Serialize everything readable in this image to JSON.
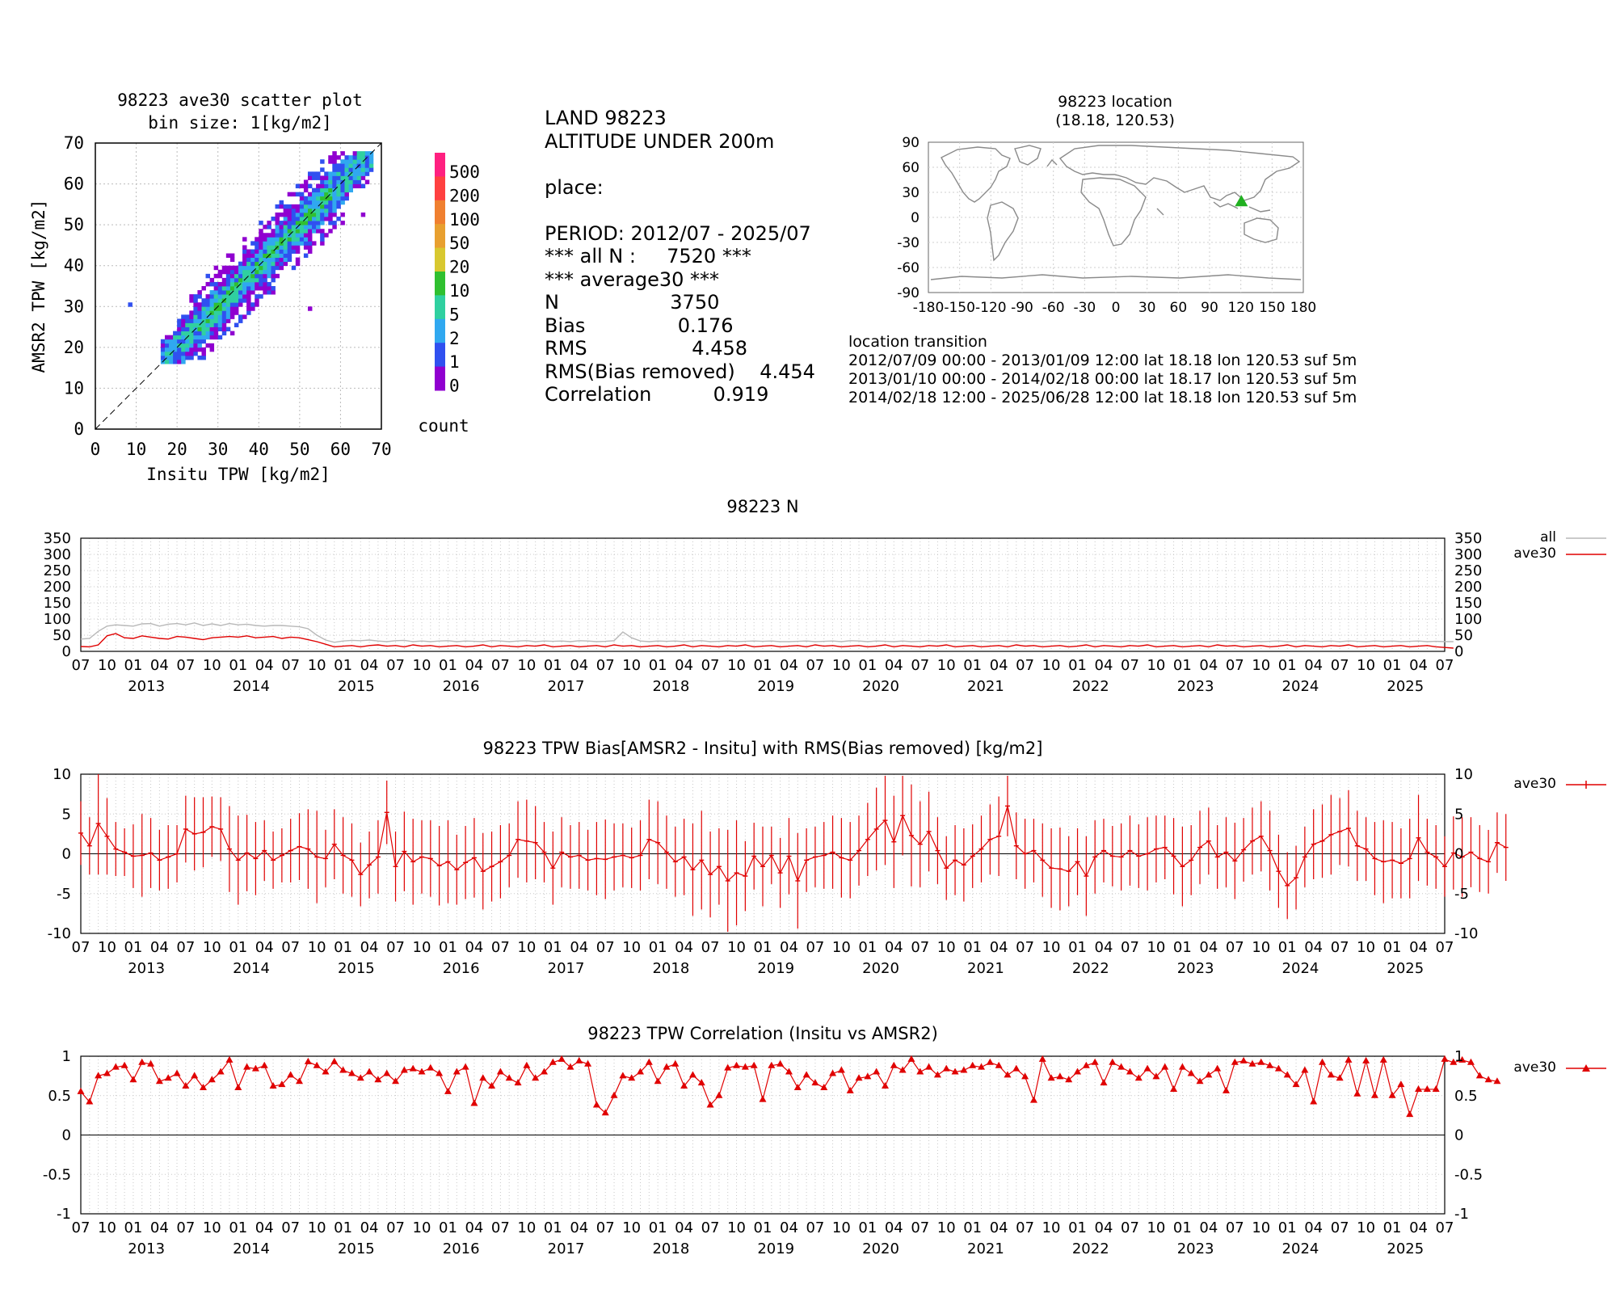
{
  "scatter": {
    "title": "98223 ave30 scatter plot",
    "subtitle": "bin size: 1[kg/m2]",
    "xlabel": "Insitu TPW [kg/m2]",
    "ylabel": "AMSR2 TPW [kg/m2]",
    "colorbar_label": "count",
    "colorbar_ticks": [
      "500",
      "200",
      "100",
      "50",
      "20",
      "10",
      "5",
      "2",
      "1",
      "0"
    ],
    "colorbar_colors": [
      "#ff2080",
      "#ff4040",
      "#f08030",
      "#e8a030",
      "#d8c830",
      "#30c030",
      "#30d0a0",
      "#30a8f0",
      "#3050f0",
      "#9000d0"
    ]
  },
  "info": {
    "line1": "LAND 98223",
    "line2": "ALTITUDE UNDER 200m",
    "place": "place:",
    "period": "PERIOD: 2012/07 - 2025/07",
    "alln": "*** all N :     7520 ***",
    "avg": "*** average30 ***",
    "n": "N                  3750",
    "bias": "Bias               0.176",
    "rms": "RMS                 4.458",
    "rmsbr": "RMS(Bias removed)    4.454",
    "corr": "Correlation          0.919"
  },
  "location": {
    "title": "98223 location",
    "coords": "(18.18, 120.53)",
    "lat": 18.18,
    "lon": 120.53,
    "marker_color": "#20b020",
    "transition_title": "location transition",
    "transitions": [
      "2012/07/09 00:00 - 2013/01/09 12:00 lat 18.18 lon 120.53 suf 5m",
      "2013/01/10 00:00 - 2014/02/18 00:00 lat 18.17 lon 120.53 suf 5m",
      "2014/02/18 12:00 - 2025/06/28 12:00 lat 18.18 lon 120.53 suf 5m"
    ]
  },
  "timeseries": {
    "month_labels": [
      "07",
      "10",
      "01",
      "04"
    ],
    "year_labels": [
      "2013",
      "2014",
      "2015",
      "2016",
      "2017",
      "2018",
      "2019",
      "2020",
      "2021",
      "2022",
      "2023",
      "2024",
      "2025"
    ]
  },
  "chart_data": [
    {
      "type": "heatmap",
      "title": "98223 ave30 scatter plot",
      "subtitle": "bin size: 1[kg/m2]",
      "xlabel": "Insitu TPW [kg/m2]",
      "ylabel": "AMSR2 TPW [kg/m2]",
      "xlim": [
        0,
        70
      ],
      "ylim": [
        0,
        70
      ],
      "xticks": [
        0,
        10,
        20,
        30,
        40,
        50,
        60,
        70
      ],
      "yticks": [
        0,
        10,
        20,
        30,
        40,
        50,
        60,
        70
      ],
      "colorbar_levels": [
        "0",
        "1",
        "2",
        "5",
        "10",
        "20",
        "50",
        "100",
        "200",
        "500"
      ],
      "density_ridge": {
        "x": [
          18,
          25,
          35,
          45,
          55,
          62
        ],
        "y": [
          19,
          25,
          35,
          45,
          55,
          62
        ]
      },
      "outliers": [
        {
          "x": 8,
          "y": 30
        },
        {
          "x": 52,
          "y": 29
        },
        {
          "x": 65,
          "y": 52
        }
      ],
      "reference_line": "y = x"
    },
    {
      "type": "line",
      "title": "98223 N",
      "ylim": [
        0,
        350
      ],
      "yticks": [
        0,
        50,
        100,
        150,
        200,
        250,
        300,
        350
      ],
      "x_start": "2012/07",
      "x_end": "2025/07",
      "series": [
        {
          "name": "all",
          "color": "#b8b8b8",
          "values": [
            38,
            40,
            62,
            78,
            82,
            80,
            78,
            85,
            86,
            78,
            84,
            86,
            82,
            88,
            80,
            85,
            80,
            86,
            82,
            84,
            80,
            78,
            80,
            80,
            78,
            76,
            70,
            50,
            35,
            28,
            32,
            34,
            33,
            35,
            32,
            30,
            33,
            34,
            30,
            32,
            30,
            32,
            33,
            30,
            32,
            31,
            30,
            33,
            32,
            30,
            32,
            33,
            30,
            32,
            31,
            32,
            30,
            33,
            32,
            30,
            31,
            33,
            60,
            42,
            32,
            30,
            32,
            31,
            32,
            30,
            32,
            33,
            30,
            31,
            32,
            30,
            31,
            32,
            31,
            32,
            30,
            30,
            31,
            32,
            30,
            31,
            32,
            30,
            33,
            32,
            30,
            32,
            31,
            30,
            32,
            30,
            31,
            32,
            30,
            31,
            32,
            31,
            30,
            32,
            30,
            31,
            32,
            30,
            32,
            31,
            30,
            32,
            31,
            30,
            32,
            30,
            33,
            31,
            30,
            31,
            32,
            30,
            31,
            32,
            30,
            32,
            30,
            31,
            32,
            30,
            31,
            32,
            30,
            33,
            31,
            30,
            31,
            32,
            30,
            31,
            32,
            30,
            31,
            32,
            30,
            32,
            31,
            30,
            32,
            31,
            32,
            30,
            31,
            32,
            30,
            31,
            30,
            30
          ]
        },
        {
          "name": "ave30",
          "color": "#e00000",
          "values": [
            15,
            14,
            20,
            48,
            55,
            42,
            40,
            48,
            44,
            40,
            38,
            46,
            44,
            40,
            36,
            42,
            44,
            46,
            44,
            48,
            42,
            44,
            46,
            40,
            44,
            42,
            36,
            30,
            22,
            14,
            16,
            18,
            14,
            18,
            20,
            16,
            18,
            14,
            20,
            16,
            18,
            14,
            16,
            18,
            14,
            16,
            20,
            14,
            18,
            16,
            14,
            18,
            16,
            20,
            14,
            16,
            18,
            14,
            16,
            18,
            14,
            20,
            16,
            18,
            14,
            16,
            18,
            14,
            16,
            20,
            14,
            18,
            16,
            14,
            18,
            16,
            20,
            14,
            16,
            18,
            14,
            16,
            18,
            14,
            20,
            16,
            18,
            14,
            16,
            18,
            14,
            16,
            20,
            14,
            18,
            16,
            14,
            18,
            16,
            20,
            14,
            16,
            18,
            14,
            16,
            18,
            14,
            20,
            16,
            18,
            14,
            16,
            18,
            14,
            16,
            20,
            14,
            18,
            16,
            14,
            18,
            16,
            20,
            14,
            16,
            18,
            14,
            16,
            18,
            14,
            20,
            16,
            18,
            14,
            16,
            18,
            14,
            16,
            20,
            14,
            18,
            16,
            14,
            18,
            16,
            20,
            14,
            16,
            18,
            14,
            16,
            18,
            14,
            16,
            18,
            14,
            12,
            10
          ]
        }
      ]
    },
    {
      "type": "line",
      "title": "98223 TPW Bias[AMSR2 - Insitu] with RMS(Bias removed) [kg/m2]",
      "ylim": [
        -10,
        10
      ],
      "yticks": [
        -10,
        -5,
        0,
        5,
        10
      ],
      "x_start": "2012/07",
      "x_end": "2025/07",
      "series": [
        {
          "name": "ave30",
          "color": "#e00000",
          "values": [
            2.6,
            1.0,
            3.8,
            2.2,
            0.6,
            0.2,
            -0.3,
            -0.2,
            0.1,
            -0.8,
            -0.4,
            0.0,
            3.1,
            2.5,
            2.7,
            3.4,
            3.1,
            0.6,
            -0.8,
            0.1,
            -0.6,
            0.4,
            -0.8,
            -0.2,
            0.4,
            0.9,
            0.6,
            -0.4,
            -0.6,
            1.2,
            -0.2,
            -0.8,
            -2.6,
            -1.4,
            -0.4,
            5.2,
            -1.6,
            0.3,
            -1.0,
            -0.4,
            -0.6,
            -1.5,
            -1.0,
            -2.0,
            -1.1,
            -0.5,
            -2.2,
            -1.6,
            -1.0,
            -0.2,
            1.8,
            1.6,
            1.4,
            0.2,
            -1.8,
            0.2,
            -0.4,
            -0.2,
            -0.8,
            -0.6,
            -0.7,
            -0.4,
            -0.2,
            -0.5,
            -0.2,
            1.8,
            1.4,
            0.2,
            -1.0,
            -0.4,
            -2.0,
            -0.8,
            -2.6,
            -1.6,
            -3.4,
            -2.4,
            -2.8,
            -0.3,
            -1.6,
            -0.2,
            -2.4,
            -0.3,
            -3.4,
            -0.8,
            -0.4,
            -0.2,
            0.2,
            -0.5,
            -0.8,
            0.4,
            1.8,
            3.1,
            4.2,
            1.5,
            4.8,
            2.3,
            1.2,
            2.8,
            0.4,
            -1.8,
            -0.8,
            -1.4,
            -0.3,
            0.6,
            1.8,
            2.2,
            6.0,
            1.0,
            0.0,
            0.4,
            -0.8,
            -1.8,
            -1.9,
            -2.2,
            -1.0,
            -2.8,
            -0.4,
            0.4,
            -0.3,
            -0.4,
            0.4,
            -0.3,
            0.0,
            0.6,
            0.8,
            -0.3,
            -1.6,
            -0.8,
            0.8,
            1.6,
            -0.4,
            0.2,
            -0.9,
            0.5,
            1.6,
            2.2,
            0.4,
            -2.2,
            -4.0,
            -3.0,
            -0.4,
            1.2,
            1.6,
            2.4,
            2.8,
            3.2,
            1.0,
            0.6,
            -0.6,
            -1.0,
            -0.8,
            -1.2,
            -0.6,
            2.0,
            0.2,
            -0.4,
            -1.6,
            0.1,
            -0.4,
            0.2,
            -0.6,
            -1.0,
            1.4,
            0.8
          ]
        },
        {
          "name": "rms_bias_removed",
          "color": "#e00000",
          "values": [
            4.0,
            3.6,
            6.4,
            4.8,
            3.4,
            3.0,
            4.0,
            5.2,
            4.4,
            3.8,
            4.0,
            3.6,
            4.2,
            4.6,
            4.4,
            3.8,
            4.0,
            5.4,
            5.6,
            4.8,
            4.6,
            3.8,
            3.6,
            3.4,
            4.0,
            4.2,
            5.0,
            5.8,
            3.6,
            4.4,
            4.8,
            4.6,
            4.0,
            4.2,
            4.6,
            4.0,
            4.4,
            5.0,
            5.4,
            4.6,
            4.8,
            5.0,
            5.2,
            4.4,
            4.6,
            5.0,
            4.8,
            4.4,
            4.6,
            4.0,
            4.8,
            5.2,
            4.6,
            3.8,
            4.6,
            4.4,
            4.0,
            4.2,
            3.8,
            4.6,
            5.0,
            4.2,
            4.0,
            3.8,
            4.4,
            5.0,
            5.2,
            4.6,
            4.4,
            4.8,
            5.8,
            6.2,
            5.4,
            4.8,
            6.4,
            6.6,
            4.4,
            4.2,
            5.0,
            3.6,
            4.4,
            4.8,
            6.0,
            4.0,
            3.8,
            4.2,
            4.6,
            5.0,
            4.8,
            4.4,
            4.6,
            5.2,
            5.6,
            5.8,
            5.0,
            6.4,
            5.4,
            5.0,
            4.2,
            4.0,
            4.4,
            4.6,
            4.0,
            4.2,
            4.4,
            5.0,
            3.8,
            4.2,
            4.4,
            4.0,
            4.6,
            5.0,
            5.2,
            4.4,
            4.2,
            5.0,
            4.6,
            4.0,
            3.8,
            4.2,
            4.4,
            4.0,
            4.6,
            4.2,
            4.0,
            4.8,
            5.0,
            4.4,
            4.6,
            4.2,
            4.0,
            4.4,
            4.8,
            4.0,
            4.2,
            4.4,
            5.0,
            4.6,
            4.2,
            4.0,
            3.8,
            4.4,
            4.6,
            5.0,
            4.2,
            4.8,
            4.4,
            4.0,
            4.6,
            5.2,
            4.8,
            4.4,
            5.0,
            5.4,
            4.2,
            4.0,
            3.8,
            4.6,
            5.0,
            4.4,
            4.2,
            4.0,
            3.8,
            4.2
          ]
        }
      ]
    },
    {
      "type": "line",
      "title": "98223 TPW Correlation (Insitu vs AMSR2)",
      "ylim": [
        -1,
        1
      ],
      "yticks": [
        -1,
        -0.5,
        0,
        0.5,
        1
      ],
      "x_start": "2012/07",
      "x_end": "2025/07",
      "series": [
        {
          "name": "ave30",
          "color": "#e00000",
          "values": [
            0.55,
            0.42,
            0.75,
            0.78,
            0.86,
            0.88,
            0.7,
            0.92,
            0.9,
            0.68,
            0.72,
            0.78,
            0.62,
            0.75,
            0.6,
            0.7,
            0.8,
            0.95,
            0.6,
            0.86,
            0.84,
            0.88,
            0.62,
            0.64,
            0.76,
            0.68,
            0.93,
            0.88,
            0.8,
            0.93,
            0.82,
            0.78,
            0.72,
            0.8,
            0.7,
            0.78,
            0.68,
            0.82,
            0.84,
            0.8,
            0.85,
            0.78,
            0.55,
            0.8,
            0.86,
            0.4,
            0.72,
            0.62,
            0.8,
            0.72,
            0.66,
            0.88,
            0.72,
            0.8,
            0.92,
            0.96,
            0.86,
            0.94,
            0.9,
            0.38,
            0.28,
            0.5,
            0.75,
            0.72,
            0.8,
            0.92,
            0.68,
            0.86,
            0.9,
            0.62,
            0.76,
            0.66,
            0.38,
            0.5,
            0.85,
            0.88,
            0.86,
            0.88,
            0.45,
            0.88,
            0.9,
            0.8,
            0.6,
            0.76,
            0.66,
            0.6,
            0.78,
            0.82,
            0.56,
            0.72,
            0.74,
            0.8,
            0.62,
            0.88,
            0.82,
            0.96,
            0.8,
            0.86,
            0.76,
            0.84,
            0.8,
            0.82,
            0.88,
            0.86,
            0.92,
            0.88,
            0.76,
            0.84,
            0.74,
            0.44,
            0.96,
            0.72,
            0.74,
            0.7,
            0.8,
            0.88,
            0.92,
            0.66,
            0.92,
            0.86,
            0.8,
            0.72,
            0.84,
            0.74,
            0.86,
            0.58,
            0.86,
            0.78,
            0.68,
            0.76,
            0.84,
            0.56,
            0.92,
            0.94,
            0.9,
            0.92,
            0.88,
            0.84,
            0.76,
            0.64,
            0.82,
            0.42,
            0.92,
            0.76,
            0.72,
            0.95,
            0.52,
            0.94,
            0.5,
            0.95,
            0.5,
            0.64,
            0.26,
            0.58,
            0.58,
            0.58,
            0.96,
            0.92,
            0.95,
            0.92,
            0.75,
            0.7,
            0.68
          ]
        }
      ]
    }
  ]
}
